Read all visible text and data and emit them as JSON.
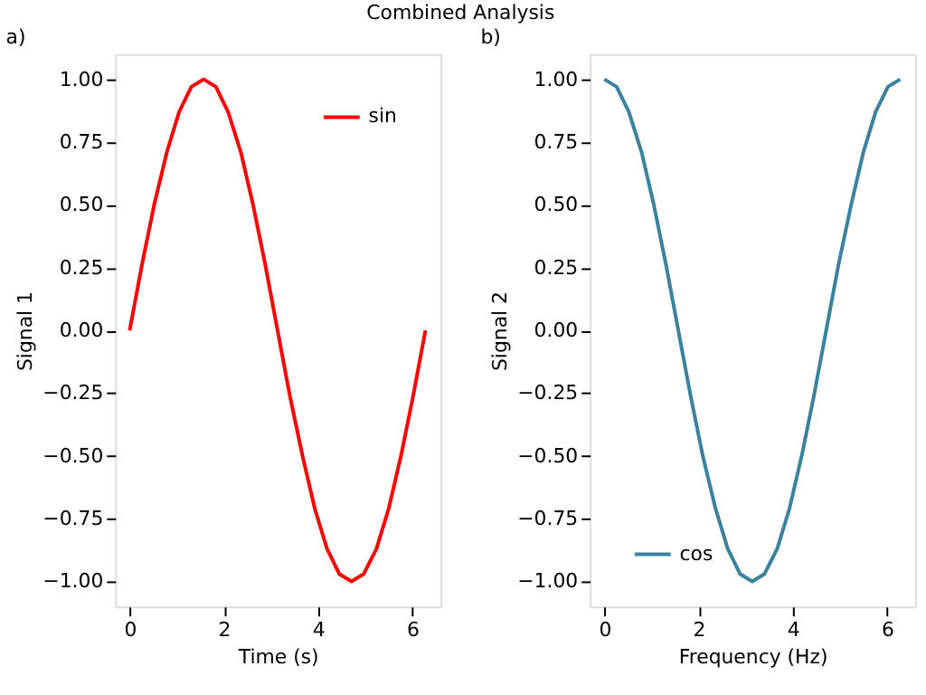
{
  "chart_data": [
    {
      "type": "line",
      "title": "a)",
      "annotations": [
        "Combined Analysis"
      ],
      "xlabel": "Time (s)",
      "ylabel": "Signal 1",
      "x": [
        0,
        0.26,
        0.52,
        0.79,
        1.05,
        1.31,
        1.57,
        1.83,
        2.09,
        2.36,
        2.62,
        2.88,
        3.14,
        3.4,
        3.67,
        3.93,
        4.19,
        4.45,
        4.71,
        4.97,
        5.24,
        5.5,
        5.76,
        6.02,
        6.28
      ],
      "series": [
        {
          "name": "sin",
          "color": "#ff0000",
          "values": [
            0,
            0.26,
            0.5,
            0.71,
            0.87,
            0.97,
            1,
            0.97,
            0.87,
            0.71,
            0.5,
            0.26,
            0,
            -0.26,
            -0.5,
            -0.71,
            -0.87,
            -0.97,
            -1,
            -0.97,
            -0.87,
            -0.71,
            -0.5,
            -0.26,
            0
          ]
        }
      ],
      "xlim": [
        -0.31,
        6.6
      ],
      "ylim": [
        -1.1,
        1.1
      ],
      "xticks": [
        0,
        2,
        4,
        6
      ],
      "yticks": [
        {
          "value": -1,
          "label": "−1.00"
        },
        {
          "value": -0.75,
          "label": "−0.75"
        },
        {
          "value": -0.5,
          "label": "−0.50"
        },
        {
          "value": -0.25,
          "label": "−0.25"
        },
        {
          "value": 0,
          "label": "0.00"
        },
        {
          "value": 0.25,
          "label": "0.25"
        },
        {
          "value": 0.5,
          "label": "0.50"
        },
        {
          "value": 0.75,
          "label": "0.75"
        },
        {
          "value": 1,
          "label": "1.00"
        }
      ],
      "legend": "top right",
      "grid": false
    },
    {
      "type": "line",
      "title": "b)",
      "xlabel": "Frequency (Hz)",
      "ylabel": "Signal 2",
      "x": [
        0,
        0.26,
        0.52,
        0.79,
        1.05,
        1.31,
        1.57,
        1.83,
        2.09,
        2.36,
        2.62,
        2.88,
        3.14,
        3.4,
        3.67,
        3.93,
        4.19,
        4.45,
        4.71,
        4.97,
        5.24,
        5.5,
        5.76,
        6.02,
        6.28
      ],
      "series": [
        {
          "name": "cos",
          "color": "#3a819e",
          "values": [
            1,
            0.97,
            0.87,
            0.71,
            0.5,
            0.26,
            0,
            -0.26,
            -0.5,
            -0.71,
            -0.87,
            -0.97,
            -1,
            -0.97,
            -0.87,
            -0.71,
            -0.5,
            -0.26,
            0,
            0.26,
            0.5,
            0.71,
            0.87,
            0.97,
            1
          ]
        }
      ],
      "xlim": [
        -0.31,
        6.6
      ],
      "ylim": [
        -1.1,
        1.1
      ],
      "xticks": [
        0,
        2,
        4,
        6
      ],
      "yticks": [
        {
          "value": -1,
          "label": "−1.00"
        },
        {
          "value": -0.75,
          "label": "−0.75"
        },
        {
          "value": -0.5,
          "label": "−0.50"
        },
        {
          "value": -0.25,
          "label": "−0.25"
        },
        {
          "value": 0,
          "label": "0.00"
        },
        {
          "value": 0.25,
          "label": "0.25"
        },
        {
          "value": 0.5,
          "label": "0.50"
        },
        {
          "value": 0.75,
          "label": "0.75"
        },
        {
          "value": 1,
          "label": "1.00"
        }
      ],
      "legend": "bottom left",
      "grid": false
    }
  ]
}
